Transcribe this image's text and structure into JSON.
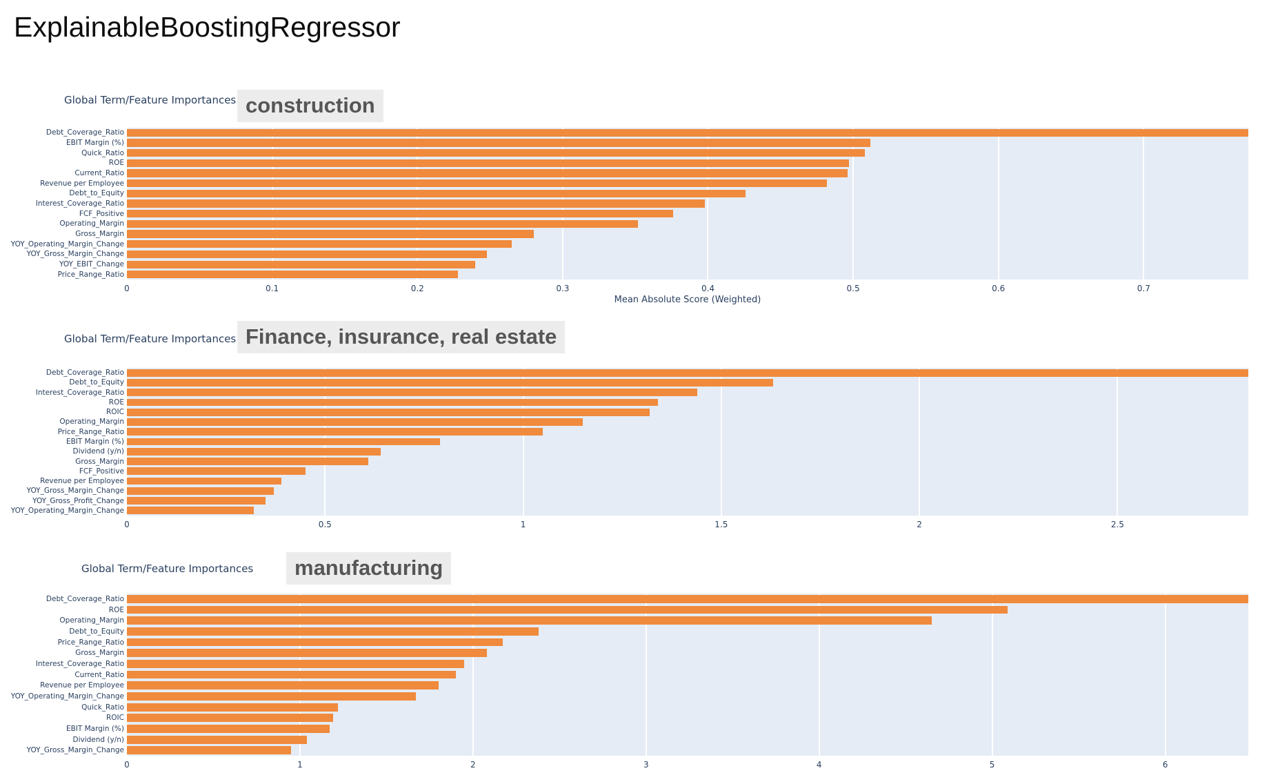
{
  "page": {
    "title": "ExplainableBoostingRegressor"
  },
  "colors": {
    "bar": "#f08a3c",
    "plot_background": "#e5ecf6",
    "gridline": "#ffffff",
    "axis_text": "#2a3f5f",
    "section_badge_text": "#565656",
    "section_badge_background": "#ececec"
  },
  "chart_data": [
    {
      "type": "bar",
      "orientation": "horizontal",
      "title": "Global Term/Feature Importances",
      "section_label": "construction",
      "xlabel": "Mean Absolute Score (Weighted)",
      "grid": true,
      "legend": "none",
      "xlim": [
        0,
        0.772
      ],
      "xticks": [
        0,
        0.1,
        0.2,
        0.3,
        0.4,
        0.5,
        0.6,
        0.7
      ],
      "xtick_labels": [
        "0",
        "0.1",
        "0.2",
        "0.3",
        "0.4",
        "0.5",
        "0.6",
        "0.7"
      ],
      "categories": [
        "Debt_Coverage_Ratio",
        "EBIT Margin (%)",
        "Quick_Ratio",
        "ROE",
        "Current_Ratio",
        "Revenue per Employee",
        "Debt_to_Equity",
        "Interest_Coverage_Ratio",
        "FCF_Positive",
        "Operating_Margin",
        "Gross_Margin",
        "YOY_Operating_Margin_Change",
        "YOY_Gross_Margin_Change",
        "YOY_EBIT_Change",
        "Price_Range_Ratio"
      ],
      "values": [
        0.775,
        0.512,
        0.508,
        0.497,
        0.496,
        0.482,
        0.426,
        0.398,
        0.376,
        0.352,
        0.28,
        0.265,
        0.248,
        0.24,
        0.228
      ]
    },
    {
      "type": "bar",
      "orientation": "horizontal",
      "title": "Global Term/Feature Importances",
      "section_label": "Finance, insurance, real estate",
      "xlabel": "",
      "grid": true,
      "legend": "none",
      "xlim": [
        0,
        2.83
      ],
      "xticks": [
        0,
        0.5,
        1,
        1.5,
        2,
        2.5
      ],
      "xtick_labels": [
        "0",
        "0.5",
        "1",
        "1.5",
        "2",
        "2.5"
      ],
      "categories": [
        "Debt_Coverage_Ratio",
        "Debt_to_Equity",
        "Interest_Coverage_Ratio",
        "ROE",
        "ROIC",
        "Operating_Margin",
        "Price_Range_Ratio",
        "EBIT Margin (%)",
        "Dividend (y/n)",
        "Gross_Margin",
        "FCF_Positive",
        "Revenue per Employee",
        "YOY_Gross_Margin_Change",
        "YOY_Gross_Profit_Change",
        "YOY_Operating_Margin_Change"
      ],
      "values": [
        2.84,
        1.63,
        1.44,
        1.34,
        1.32,
        1.15,
        1.05,
        0.79,
        0.64,
        0.61,
        0.45,
        0.39,
        0.37,
        0.35,
        0.32
      ]
    },
    {
      "type": "bar",
      "orientation": "horizontal",
      "title": "Global Term/Feature Importances",
      "section_label": "manufacturing",
      "xlabel": "",
      "grid": true,
      "legend": "none",
      "xlim": [
        0,
        6.48
      ],
      "xticks": [
        0,
        1,
        2,
        3,
        4,
        5,
        6
      ],
      "xtick_labels": [
        "0",
        "1",
        "2",
        "3",
        "4",
        "5",
        "6"
      ],
      "categories": [
        "Debt_Coverage_Ratio",
        "ROE",
        "Operating_Margin",
        "Debt_to_Equity",
        "Price_Range_Ratio",
        "Gross_Margin",
        "Interest_Coverage_Ratio",
        "Current_Ratio",
        "Revenue per Employee",
        "YOY_Operating_Margin_Change",
        "Quick_Ratio",
        "ROIC",
        "EBIT Margin (%)",
        "Dividend (y/n)",
        "YOY_Gross_Margin_Change"
      ],
      "values": [
        6.5,
        5.09,
        4.65,
        2.38,
        2.17,
        2.08,
        1.95,
        1.9,
        1.8,
        1.67,
        1.22,
        1.19,
        1.17,
        1.04,
        0.95
      ]
    }
  ]
}
